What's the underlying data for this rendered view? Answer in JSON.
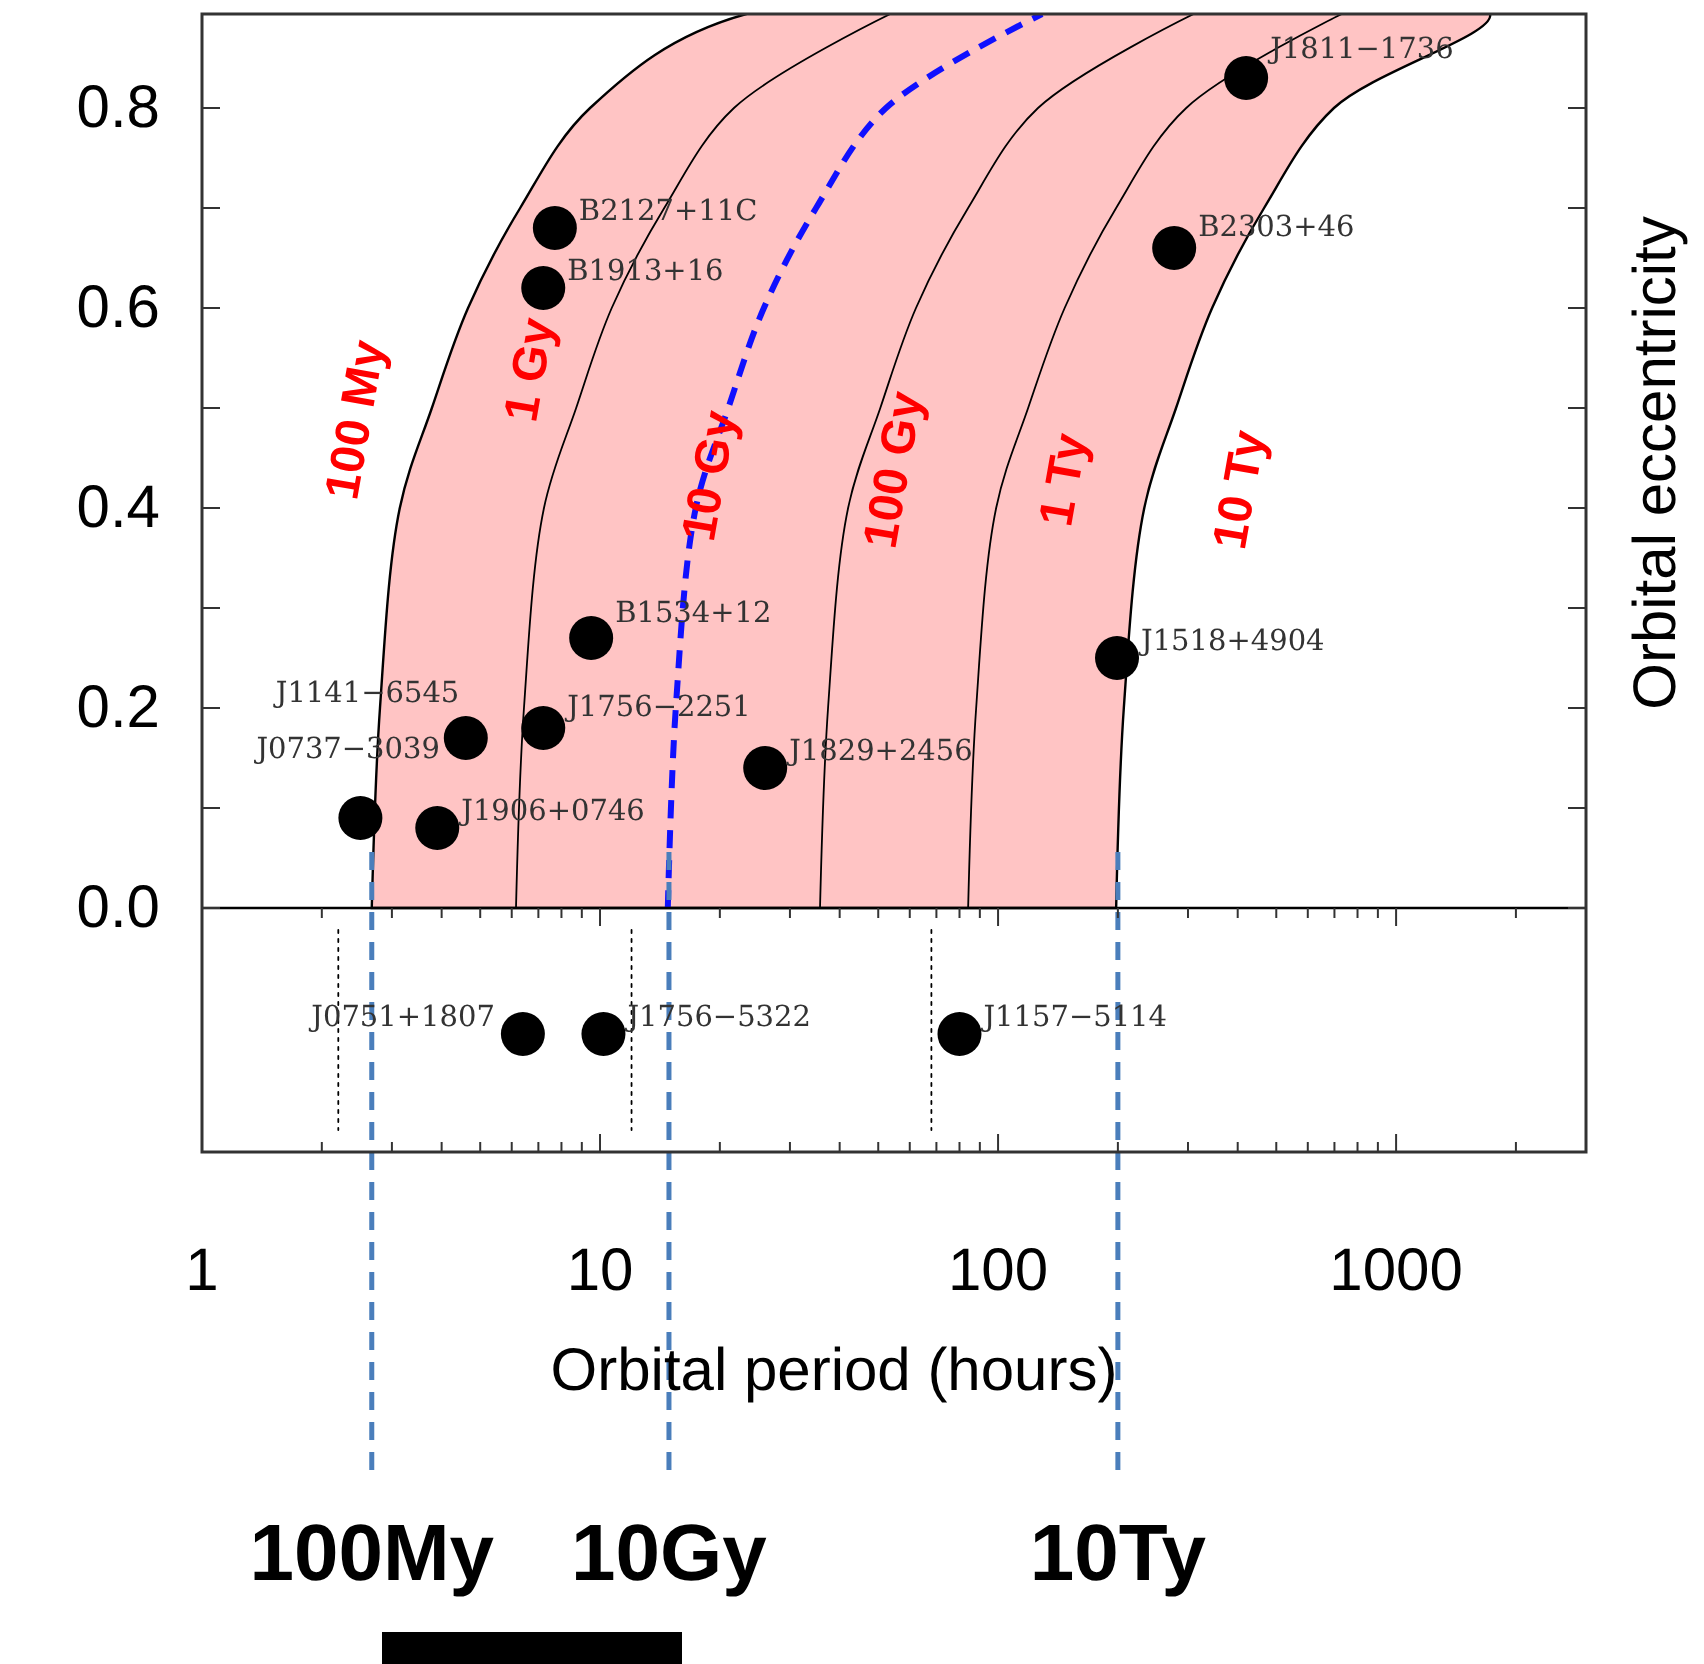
{
  "chart_data": {
    "type": "scatter",
    "xlabel": "Orbital period (hours)",
    "ylabel": "Orbital eccentricity",
    "log": "x",
    "grid": false,
    "xlim": [
      1,
      3000
    ],
    "ylim": [
      -0.244,
      0.894
    ],
    "xticks": [
      1,
      {
        "value": 2,
        "label": null
      },
      {
        "value": 3,
        "label": null
      },
      {
        "value": 4,
        "label": null
      },
      {
        "value": 5,
        "label": null
      },
      {
        "value": 6,
        "label": null
      },
      {
        "value": 7,
        "label": null
      },
      {
        "value": 8,
        "label": null
      },
      {
        "value": 9,
        "label": null
      },
      10,
      {
        "value": 20,
        "label": null
      },
      {
        "value": 30,
        "label": null
      },
      {
        "value": 40,
        "label": null
      },
      {
        "value": 50,
        "label": null
      },
      {
        "value": 60,
        "label": null
      },
      {
        "value": 70,
        "label": null
      },
      {
        "value": 80,
        "label": null
      },
      {
        "value": 90,
        "label": null
      },
      100,
      {
        "value": 200,
        "label": null
      },
      {
        "value": 300,
        "label": null
      },
      {
        "value": 400,
        "label": null
      },
      {
        "value": 500,
        "label": null
      },
      {
        "value": 600,
        "label": null
      },
      {
        "value": 700,
        "label": null
      },
      {
        "value": 800,
        "label": null
      },
      {
        "value": 900,
        "label": null
      },
      1000,
      {
        "value": 2000,
        "label": null
      }
    ],
    "yticks": [
      {
        "value": 0,
        "label": "0.0"
      },
      {
        "value": 0.1,
        "label": null
      },
      0.2,
      {
        "value": 0.3,
        "label": null
      },
      0.4,
      {
        "value": 0.5,
        "label": null
      },
      0.6,
      {
        "value": 0.7,
        "label": null
      },
      0.8
    ],
    "series": [
      {
        "type": "area",
        "color": "#ffc4c4",
        "x": [
          2.67,
          2.8,
          3.14,
          3.78,
          4.66,
          6.3,
          9.44,
          23.3,
          1722,
          698,
          466,
          345,
          280,
          233,
          207,
          198
        ],
        "values": [
          0,
          0.2,
          0.4,
          0.5,
          0.6,
          0.7,
          0.8,
          0.894,
          0.894,
          0.8,
          0.7,
          0.6,
          0.5,
          0.4,
          0.2,
          0
        ]
      },
      {
        "type": "line",
        "color": "#000000",
        "line_style": "solid",
        "x": [
          6.15,
          6.44,
          7.23,
          8.71,
          10.7,
          14.5,
          21.7,
          53.6
        ],
        "values": [
          0,
          0.2,
          0.4,
          0.5,
          0.6,
          0.7,
          0.8,
          0.894
        ]
      },
      {
        "type": "line",
        "color": "#000000",
        "line_style": "solid",
        "x": [
          35.7,
          37.4,
          42,
          50.6,
          62.2,
          84.1,
          126,
          310
        ],
        "values": [
          0,
          0.2,
          0.4,
          0.5,
          0.6,
          0.7,
          0.8,
          0.894
        ]
      },
      {
        "type": "line",
        "color": "#000000",
        "line_style": "solid",
        "x": [
          84.1,
          88.1,
          98.9,
          119,
          147,
          198,
          297,
          731
        ],
        "values": [
          0,
          0.2,
          0.4,
          0.5,
          0.6,
          0.7,
          0.8,
          0.894
        ]
      },
      {
        "type": "line",
        "color": "#1010ff",
        "line_style": "dashed",
        "x": [
          14.8,
          15.5,
          17.4,
          21,
          25.8,
          34.9,
          52.3,
          129
        ],
        "values": [
          0,
          0.2,
          0.4,
          0.5,
          0.6,
          0.7,
          0.8,
          0.894
        ]
      },
      {
        "type": "line",
        "color": "#000000",
        "line_style": "dotted",
        "x": [
          2.2,
          2.2
        ],
        "values": [
          -0.022,
          -0.222
        ]
      },
      {
        "type": "line",
        "color": "#000000",
        "line_style": "dotted",
        "x": [
          12,
          12
        ],
        "values": [
          -0.022,
          -0.222
        ]
      },
      {
        "type": "line",
        "color": "#000000",
        "line_style": "dotted",
        "x": [
          68,
          68
        ],
        "values": [
          -0.022,
          -0.222
        ]
      },
      {
        "type": "scatter",
        "marker": "circle",
        "color": "#000000",
        "x": [
          2.5,
          3.9,
          4.6,
          7.2,
          9.5,
          7.7,
          7.2,
          26,
          199,
          277,
          420
        ],
        "values": [
          0.09,
          0.08,
          0.17,
          0.18,
          0.27,
          0.68,
          0.62,
          0.14,
          0.25,
          0.66,
          0.83
        ],
        "value_labels": [
          "J0737−3039",
          "J1906+0746",
          "J1141−6545",
          "J1756−2251",
          "B1534+12",
          "B2127+11C",
          "B1913+16",
          "J1829+2456",
          "J1518+4904",
          "B2303+46",
          "J1811−1736"
        ]
      },
      {
        "type": "scatter",
        "marker": "circle",
        "color": "#000000",
        "x": [
          6.4,
          10.2,
          80
        ],
        "values": [
          -0.126,
          -0.126,
          -0.126
        ],
        "value_labels": [
          "J0751+1807",
          "J1756−5322",
          "J1157−5114"
        ]
      }
    ],
    "ref_lines": [
      {
        "axis": "y",
        "value": 0,
        "color": "#000000"
      },
      {
        "axis": "x",
        "value": 2.67,
        "label": "100My",
        "color": "#4a7ebb",
        "line_style": "dashed"
      },
      {
        "axis": "x",
        "value": 14.9,
        "label": "10Gy",
        "color": "#4a7ebb",
        "line_style": "dashed"
      },
      {
        "axis": "x",
        "value": 200,
        "label": "10Ty",
        "color": "#4a7ebb",
        "line_style": "dashed"
      }
    ],
    "annotations": [
      "100 My",
      "1 Gy",
      "10 Gy",
      "100 Gy",
      "1 Ty",
      "10 Ty"
    ]
  }
}
